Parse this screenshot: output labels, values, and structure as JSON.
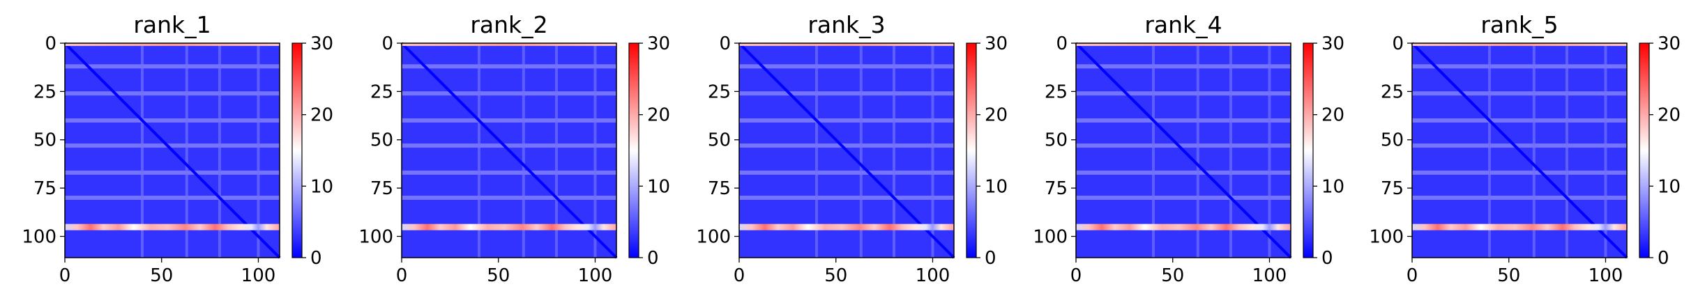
{
  "chart_data": [
    {
      "type": "heatmap",
      "title": "rank_1",
      "x_ticks": [
        0,
        50,
        100
      ],
      "y_ticks": [
        0,
        25,
        50,
        75,
        100
      ],
      "xlim": [
        0,
        111
      ],
      "ylim": [
        111,
        0
      ],
      "colorbar": {
        "ticks": [
          0,
          10,
          20,
          30
        ],
        "range": [
          0,
          30
        ],
        "colormap": "bwr"
      },
      "peak_row": 95
    },
    {
      "type": "heatmap",
      "title": "rank_2",
      "x_ticks": [
        0,
        50,
        100
      ],
      "y_ticks": [
        0,
        25,
        50,
        75,
        100
      ],
      "xlim": [
        0,
        111
      ],
      "ylim": [
        111,
        0
      ],
      "colorbar": {
        "ticks": [
          0,
          10,
          20,
          30
        ],
        "range": [
          0,
          30
        ],
        "colormap": "bwr"
      },
      "peak_row": 95
    },
    {
      "type": "heatmap",
      "title": "rank_3",
      "x_ticks": [
        0,
        50,
        100
      ],
      "y_ticks": [
        0,
        25,
        50,
        75,
        100
      ],
      "xlim": [
        0,
        111
      ],
      "ylim": [
        111,
        0
      ],
      "colorbar": {
        "ticks": [
          0,
          10,
          20,
          30
        ],
        "range": [
          0,
          30
        ],
        "colormap": "bwr"
      },
      "peak_row": 95
    },
    {
      "type": "heatmap",
      "title": "rank_4",
      "x_ticks": [
        0,
        50,
        100
      ],
      "y_ticks": [
        0,
        25,
        50,
        75,
        100
      ],
      "xlim": [
        0,
        111
      ],
      "ylim": [
        111,
        0
      ],
      "colorbar": {
        "ticks": [
          0,
          10,
          20,
          30
        ],
        "range": [
          0,
          30
        ],
        "colormap": "bwr"
      },
      "peak_row": 95
    },
    {
      "type": "heatmap",
      "title": "rank_5",
      "x_ticks": [
        0,
        50,
        100
      ],
      "y_ticks": [
        0,
        25,
        50,
        75,
        100
      ],
      "xlim": [
        0,
        111
      ],
      "ylim": [
        111,
        0
      ],
      "colorbar": {
        "ticks": [
          0,
          10,
          20,
          30
        ],
        "range": [
          0,
          30
        ],
        "colormap": "bwr"
      },
      "peak_row": 95
    }
  ]
}
